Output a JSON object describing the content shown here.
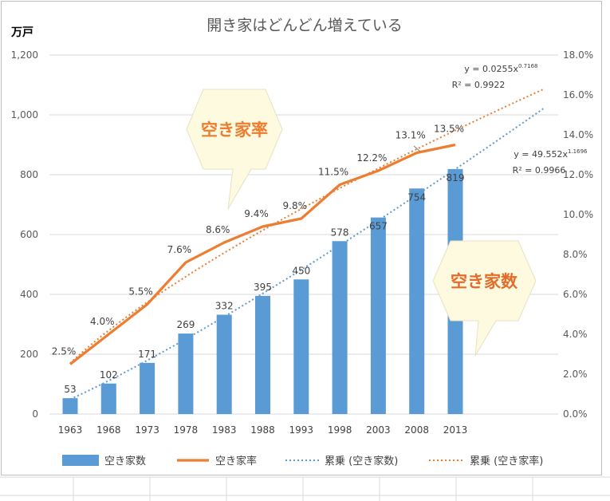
{
  "chart_data": {
    "type": "bar",
    "title": "開き家はどんどん増えている",
    "y_unit_label": "万戸",
    "categories": [
      "1963",
      "1968",
      "1973",
      "1978",
      "1983",
      "1988",
      "1993",
      "1998",
      "2003",
      "2008",
      "2013"
    ],
    "ylim": [
      0,
      1200
    ],
    "y_ticks": [
      "0",
      "200",
      "400",
      "600",
      "800",
      "1,000",
      "1,200"
    ],
    "y2lim": [
      0,
      18
    ],
    "y2_ticks": [
      "0.0%",
      "2.0%",
      "4.0%",
      "6.0%",
      "8.0%",
      "10.0%",
      "12.0%",
      "14.0%",
      "16.0%",
      "18.0%"
    ],
    "grid": true,
    "legend_position": "bottom",
    "series": [
      {
        "name": "空き家数",
        "kind": "bar",
        "axis": "left",
        "color": "#5b9bd5",
        "values": [
          53,
          102,
          171,
          269,
          332,
          395,
          450,
          578,
          657,
          754,
          819
        ],
        "labels": [
          "53",
          "102",
          "171",
          "269",
          "332",
          "395",
          "450",
          "578",
          "657",
          "754",
          "819"
        ]
      },
      {
        "name": "空き家率",
        "kind": "line",
        "axis": "right",
        "color": "#ed7d31",
        "values": [
          2.5,
          4.0,
          5.5,
          7.6,
          8.6,
          9.4,
          9.8,
          11.5,
          12.2,
          13.1,
          13.5
        ],
        "labels": [
          "2.5%",
          "4.0%",
          "5.5%",
          "7.6%",
          "8.6%",
          "9.4%",
          "9.8%",
          "11.5%",
          "12.2%",
          "13.1%",
          "13.5%"
        ]
      },
      {
        "name": "累乗 (空き家数)",
        "kind": "trendline",
        "axis": "left",
        "color": "#5b9bd5",
        "coef": 49.552,
        "exp": 1.1696,
        "equation_main": "y = 49.552x",
        "equation_exp": "1.1696",
        "r2": "R² = 0.9966"
      },
      {
        "name": "累乗 (空き家率)",
        "kind": "trendline",
        "axis": "right",
        "color": "#ed7d31",
        "coef": 0.0255,
        "exp": 0.7168,
        "equation_main": "y = 0.0255x",
        "equation_exp": "0.7168",
        "r2": "R² = 0.9922"
      }
    ],
    "callouts": [
      {
        "text": "空き家率",
        "color": "#ed7d31"
      },
      {
        "text": "空き家数",
        "color": "#e36c2a"
      }
    ]
  }
}
